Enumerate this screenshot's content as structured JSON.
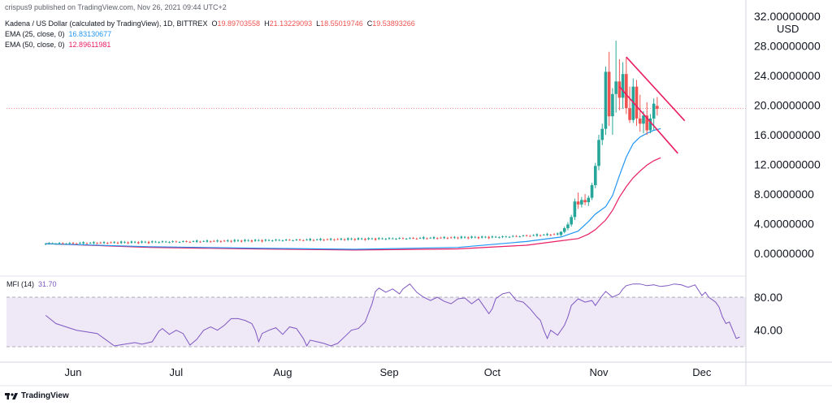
{
  "header": {
    "published": "crispus9 published on TradingView.com, Nov 26, 2021 09:44 UTC+2",
    "symbol": "Kadena / US Dollar (calculated by TradingView), 1D, BITTREX",
    "ohlc": {
      "o_label": "O",
      "o": "19.89703558",
      "h_label": "H",
      "h": "21.13229093",
      "l_label": "L",
      "l": "18.55019746",
      "c_label": "C",
      "c": "19.53893266"
    },
    "ema25": {
      "label": "EMA (25, close, 0)",
      "value": "16.83130677"
    },
    "ema50": {
      "label": "EMA (50, close, 0)",
      "value": "12.89611981"
    },
    "currency": "USD"
  },
  "mfi": {
    "label": "MFI (14)",
    "value": "31.70"
  },
  "footer": {
    "brand": "TradingView"
  },
  "colors": {
    "up": "#26a69a",
    "down": "#ef5350",
    "ema25": "#2196f3",
    "ema50": "#e91e63",
    "mfi": "#7e57c2",
    "mfi_band": "#ede7f6",
    "trendline": "#e91e63"
  },
  "chart_data": [
    {
      "type": "candlestick",
      "title": "Kadena / US Dollar (calculated by TradingView), 1D, BITTREX",
      "x_ticks": [
        "Jun",
        "Jul",
        "Aug",
        "Sep",
        "Oct",
        "Nov",
        "Dec"
      ],
      "y_ticks": [
        "32.00000000",
        "28.00000000",
        "24.00000000",
        "20.00000000",
        "16.00000000",
        "12.00000000",
        "8.00000000",
        "4.00000000",
        "0.00000000"
      ],
      "ylim": [
        -2.5,
        32.5
      ],
      "last_price_line": 19.54,
      "segments": [
        {
          "start_day": 0,
          "end_day": 133,
          "start_price": 1.3,
          "end_price": 2.2,
          "name": "May-Sep drift"
        },
        {
          "start_day": 133,
          "end_day": 150,
          "start_price": 2.2,
          "end_price": 2.6
        }
      ],
      "ema25": [
        [
          0,
          1.3
        ],
        [
          30,
          0.9
        ],
        [
          60,
          0.7
        ],
        [
          90,
          0.55
        ],
        [
          120,
          0.8
        ],
        [
          140,
          1.6
        ],
        [
          150,
          2.2
        ],
        [
          155,
          3.0
        ],
        [
          158,
          4.3
        ],
        [
          160,
          5.3
        ],
        [
          163,
          6.3
        ],
        [
          165,
          7.8
        ],
        [
          167,
          10.5
        ],
        [
          169,
          13.0
        ],
        [
          171,
          14.8
        ],
        [
          173,
          15.7
        ],
        [
          175,
          16.2
        ],
        [
          177,
          16.6
        ],
        [
          179,
          16.83
        ]
      ],
      "ema50": [
        [
          0,
          1.3
        ],
        [
          30,
          0.8
        ],
        [
          60,
          0.6
        ],
        [
          90,
          0.45
        ],
        [
          120,
          0.6
        ],
        [
          140,
          1.1
        ],
        [
          150,
          1.7
        ],
        [
          155,
          2.0
        ],
        [
          158,
          2.6
        ],
        [
          160,
          3.2
        ],
        [
          163,
          4.5
        ],
        [
          165,
          5.8
        ],
        [
          167,
          7.6
        ],
        [
          169,
          9.0
        ],
        [
          171,
          10.2
        ],
        [
          173,
          11.1
        ],
        [
          175,
          11.9
        ],
        [
          177,
          12.5
        ],
        [
          179,
          12.9
        ]
      ],
      "trend_lines": [
        {
          "name": "upper-trendline",
          "from": [
            169,
            26.5
          ],
          "to": [
            186,
            17.9
          ]
        },
        {
          "name": "lower-trendline",
          "from": [
            167,
            22.5
          ],
          "to": [
            184,
            13.5
          ]
        }
      ],
      "candles_recent": [
        {
          "day": 150,
          "o": 2.5,
          "h": 3.0,
          "l": 2.3,
          "c": 2.9
        },
        {
          "day": 151,
          "o": 2.9,
          "h": 3.6,
          "l": 2.7,
          "c": 3.4
        },
        {
          "day": 152,
          "o": 3.4,
          "h": 4.2,
          "l": 3.1,
          "c": 3.9
        },
        {
          "day": 153,
          "o": 3.9,
          "h": 5.2,
          "l": 3.6,
          "c": 4.9
        },
        {
          "day": 154,
          "o": 4.9,
          "h": 7.4,
          "l": 4.5,
          "c": 7.0
        },
        {
          "day": 155,
          "o": 7.0,
          "h": 8.2,
          "l": 6.0,
          "c": 6.6
        },
        {
          "day": 156,
          "o": 6.6,
          "h": 7.6,
          "l": 6.2,
          "c": 7.2
        },
        {
          "day": 157,
          "o": 7.2,
          "h": 8.0,
          "l": 6.5,
          "c": 6.9
        },
        {
          "day": 158,
          "o": 6.9,
          "h": 7.8,
          "l": 6.4,
          "c": 7.5
        },
        {
          "day": 159,
          "o": 7.5,
          "h": 9.5,
          "l": 7.2,
          "c": 9.2
        },
        {
          "day": 160,
          "o": 9.2,
          "h": 12.2,
          "l": 8.8,
          "c": 11.8
        },
        {
          "day": 161,
          "o": 11.8,
          "h": 16.0,
          "l": 11.2,
          "c": 15.3
        },
        {
          "day": 162,
          "o": 15.3,
          "h": 17.5,
          "l": 14.6,
          "c": 16.8
        },
        {
          "day": 163,
          "o": 16.8,
          "h": 25.2,
          "l": 16.0,
          "c": 24.5
        },
        {
          "day": 164,
          "o": 24.5,
          "h": 27.2,
          "l": 17.2,
          "c": 18.5
        },
        {
          "day": 165,
          "o": 18.5,
          "h": 22.3,
          "l": 16.0,
          "c": 21.5
        },
        {
          "day": 166,
          "o": 21.5,
          "h": 28.7,
          "l": 19.0,
          "c": 23.2
        },
        {
          "day": 167,
          "o": 23.2,
          "h": 26.2,
          "l": 19.3,
          "c": 21.0
        },
        {
          "day": 168,
          "o": 21.0,
          "h": 25.8,
          "l": 19.5,
          "c": 24.2
        },
        {
          "day": 169,
          "o": 24.2,
          "h": 26.5,
          "l": 18.8,
          "c": 19.6
        },
        {
          "day": 170,
          "o": 19.6,
          "h": 22.5,
          "l": 17.6,
          "c": 18.0
        },
        {
          "day": 171,
          "o": 18.0,
          "h": 23.6,
          "l": 17.6,
          "c": 22.5
        },
        {
          "day": 172,
          "o": 22.5,
          "h": 23.4,
          "l": 17.2,
          "c": 18.2
        },
        {
          "day": 173,
          "o": 18.2,
          "h": 21.4,
          "l": 16.4,
          "c": 17.5
        },
        {
          "day": 174,
          "o": 17.5,
          "h": 19.2,
          "l": 16.2,
          "c": 18.6
        },
        {
          "day": 175,
          "o": 18.6,
          "h": 20.4,
          "l": 16.0,
          "c": 16.6
        },
        {
          "day": 176,
          "o": 16.6,
          "h": 18.8,
          "l": 16.2,
          "c": 18.2
        },
        {
          "day": 177,
          "o": 18.2,
          "h": 20.9,
          "l": 16.6,
          "c": 20.2
        },
        {
          "day": 178,
          "o": 19.9,
          "h": 21.1,
          "l": 18.6,
          "c": 19.5
        }
      ]
    },
    {
      "type": "line",
      "title": "MFI (14)",
      "y_ticks": [
        "80.00",
        "40.00"
      ],
      "ylim": [
        12,
        104
      ],
      "band": [
        20,
        80
      ],
      "last_value": 31.7,
      "points": [
        [
          0,
          58
        ],
        [
          3,
          48
        ],
        [
          6,
          44
        ],
        [
          9,
          40
        ],
        [
          12,
          38
        ],
        [
          15,
          36
        ],
        [
          17,
          30
        ],
        [
          20,
          21
        ],
        [
          23,
          23
        ],
        [
          26,
          25
        ],
        [
          28,
          23
        ],
        [
          31,
          26
        ],
        [
          33,
          39
        ],
        [
          34,
          42
        ],
        [
          36,
          35
        ],
        [
          38,
          40
        ],
        [
          40,
          36
        ],
        [
          42,
          22
        ],
        [
          44,
          29
        ],
        [
          46,
          40
        ],
        [
          48,
          44
        ],
        [
          50,
          40
        ],
        [
          52,
          46
        ],
        [
          54,
          54
        ],
        [
          56,
          54
        ],
        [
          58,
          52
        ],
        [
          60,
          48
        ],
        [
          61,
          40
        ],
        [
          62,
          26
        ],
        [
          63,
          36
        ],
        [
          65,
          40
        ],
        [
          67,
          43
        ],
        [
          69,
          35
        ],
        [
          71,
          44
        ],
        [
          73,
          42
        ],
        [
          75,
          30
        ],
        [
          76,
          21
        ],
        [
          77,
          28
        ],
        [
          79,
          26
        ],
        [
          81,
          24
        ],
        [
          83,
          21
        ],
        [
          85,
          24
        ],
        [
          87,
          32
        ],
        [
          89,
          40
        ],
        [
          91,
          42
        ],
        [
          93,
          50
        ],
        [
          95,
          72
        ],
        [
          96,
          87
        ],
        [
          97,
          91
        ],
        [
          99,
          86
        ],
        [
          101,
          90
        ],
        [
          103,
          84
        ],
        [
          104,
          90
        ],
        [
          106,
          96
        ],
        [
          108,
          86
        ],
        [
          110,
          80
        ],
        [
          112,
          76
        ],
        [
          114,
          80
        ],
        [
          116,
          75
        ],
        [
          118,
          72
        ],
        [
          120,
          78
        ],
        [
          122,
          79
        ],
        [
          124,
          72
        ],
        [
          126,
          78
        ],
        [
          128,
          66
        ],
        [
          129,
          60
        ],
        [
          130,
          66
        ],
        [
          131,
          78
        ],
        [
          133,
          84
        ],
        [
          135,
          86
        ],
        [
          137,
          76
        ],
        [
          139,
          74
        ],
        [
          141,
          66
        ],
        [
          143,
          56
        ],
        [
          144,
          52
        ],
        [
          145,
          40
        ],
        [
          146,
          30
        ],
        [
          147,
          40
        ],
        [
          149,
          34
        ],
        [
          151,
          46
        ],
        [
          152,
          56
        ],
        [
          153,
          70
        ],
        [
          155,
          78
        ],
        [
          157,
          74
        ],
        [
          159,
          76
        ],
        [
          160,
          70
        ],
        [
          162,
          82
        ],
        [
          163,
          87
        ],
        [
          165,
          80
        ],
        [
          167,
          84
        ],
        [
          168,
          90
        ],
        [
          169,
          94
        ],
        [
          171,
          96
        ],
        [
          173,
          96
        ],
        [
          175,
          94
        ],
        [
          177,
          95
        ],
        [
          179,
          93
        ],
        [
          181,
          94
        ],
        [
          183,
          96
        ],
        [
          185,
          95
        ],
        [
          187,
          92
        ],
        [
          189,
          95
        ],
        [
          191,
          82
        ],
        [
          192,
          86
        ],
        [
          193,
          80
        ],
        [
          195,
          74
        ],
        [
          196,
          68
        ],
        [
          197,
          56
        ],
        [
          198,
          48
        ],
        [
          199,
          50
        ],
        [
          200,
          40
        ],
        [
          201,
          30
        ],
        [
          202,
          31.7
        ]
      ]
    }
  ]
}
